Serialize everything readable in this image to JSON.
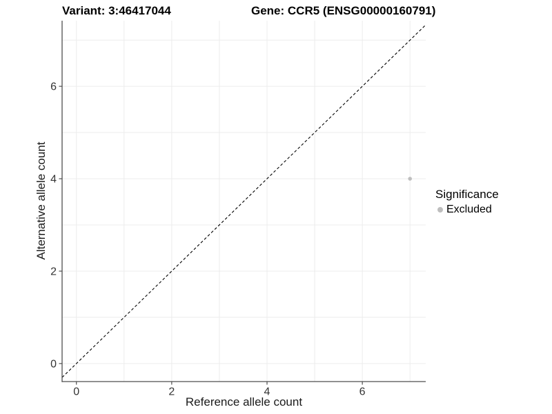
{
  "chart_data": {
    "type": "scatter",
    "title_left": "Variant: 3:46417044",
    "title_right": "Gene: CCR5 (ENSG00000160791)",
    "xlabel": "Reference allele count",
    "ylabel": "Alternative allele count",
    "xlim": [
      -0.3,
      7.33
    ],
    "ylim": [
      -0.39,
      7.42
    ],
    "x_ticks": [
      0,
      2,
      4,
      6
    ],
    "y_ticks": [
      0,
      2,
      4,
      6
    ],
    "gridlines": [
      0,
      1,
      2,
      3,
      4,
      5,
      6,
      7
    ],
    "grid": true,
    "colors": {
      "gridline": "#ececec",
      "axis_line": "#4d4d4d",
      "tick_label": "#333333",
      "point_excluded": "#bebebe",
      "reference_line": "#000000"
    },
    "reference_line": {
      "slope": 1,
      "intercept": 0,
      "linetype": "dashed"
    },
    "series": [
      {
        "name": "Excluded",
        "color": "#bebebe",
        "points": [
          {
            "x": 7,
            "y": 4
          }
        ]
      }
    ],
    "legend": {
      "title": "Significance",
      "position": "right",
      "entries": [
        {
          "label": "Excluded",
          "color": "#bebebe"
        }
      ]
    }
  }
}
